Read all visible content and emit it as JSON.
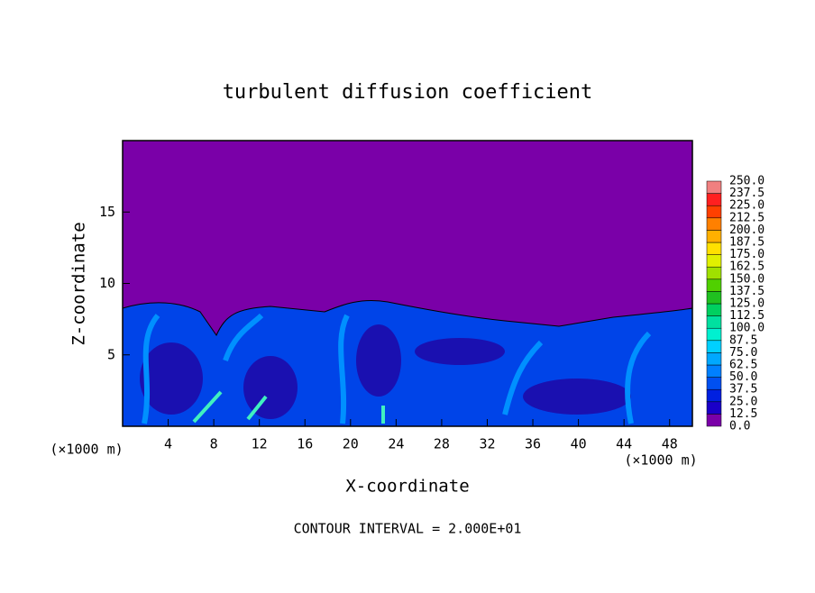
{
  "chart_data": {
    "type": "contour",
    "title": "turbulent diffusion coefficient",
    "xlabel": "X-coordinate",
    "ylabel": "Z-coordinate",
    "x_units": "(×1000 m)",
    "footnote": "CONTOUR INTERVAL = 2.000E+01",
    "xlim": [
      0,
      50
    ],
    "ylim": [
      0,
      20
    ],
    "xticks": [
      4,
      8,
      12,
      16,
      20,
      24,
      28,
      32,
      36,
      40,
      44,
      48
    ],
    "yticks": [
      5,
      10,
      15
    ],
    "colorbar": {
      "levels": [
        {
          "value": 0,
          "label": "0.0"
        },
        12.5,
        {
          "value": 25,
          "label": "25.0"
        },
        37.5,
        {
          "value": 50,
          "label": "50.0"
        },
        62.5,
        {
          "value": 75,
          "label": "75.0"
        },
        87.5,
        {
          "value": 100,
          "label": "100.0"
        },
        112.5,
        {
          "value": 125,
          "label": "125.0"
        },
        137.5,
        {
          "value": 150,
          "label": "150.0"
        },
        162.5,
        {
          "value": 175,
          "label": "175.0"
        },
        187.5,
        {
          "value": 200,
          "label": "200.0"
        },
        212.5,
        {
          "value": 225,
          "label": "225.0"
        },
        237.5,
        {
          "value": 250,
          "label": "250.0"
        }
      ],
      "colors": [
        "#7a00a8",
        "#1a00c8",
        "#0020e0",
        "#0050f0",
        "#0080ff",
        "#00a8ff",
        "#00d0ff",
        "#00f0d0",
        "#00e0a0",
        "#00d060",
        "#20c020",
        "#50d000",
        "#a0e000",
        "#e0f000",
        "#ffe000",
        "#ffb000",
        "#ff8000",
        "#ff4000",
        "#ff2020",
        "#f08080"
      ]
    }
  }
}
